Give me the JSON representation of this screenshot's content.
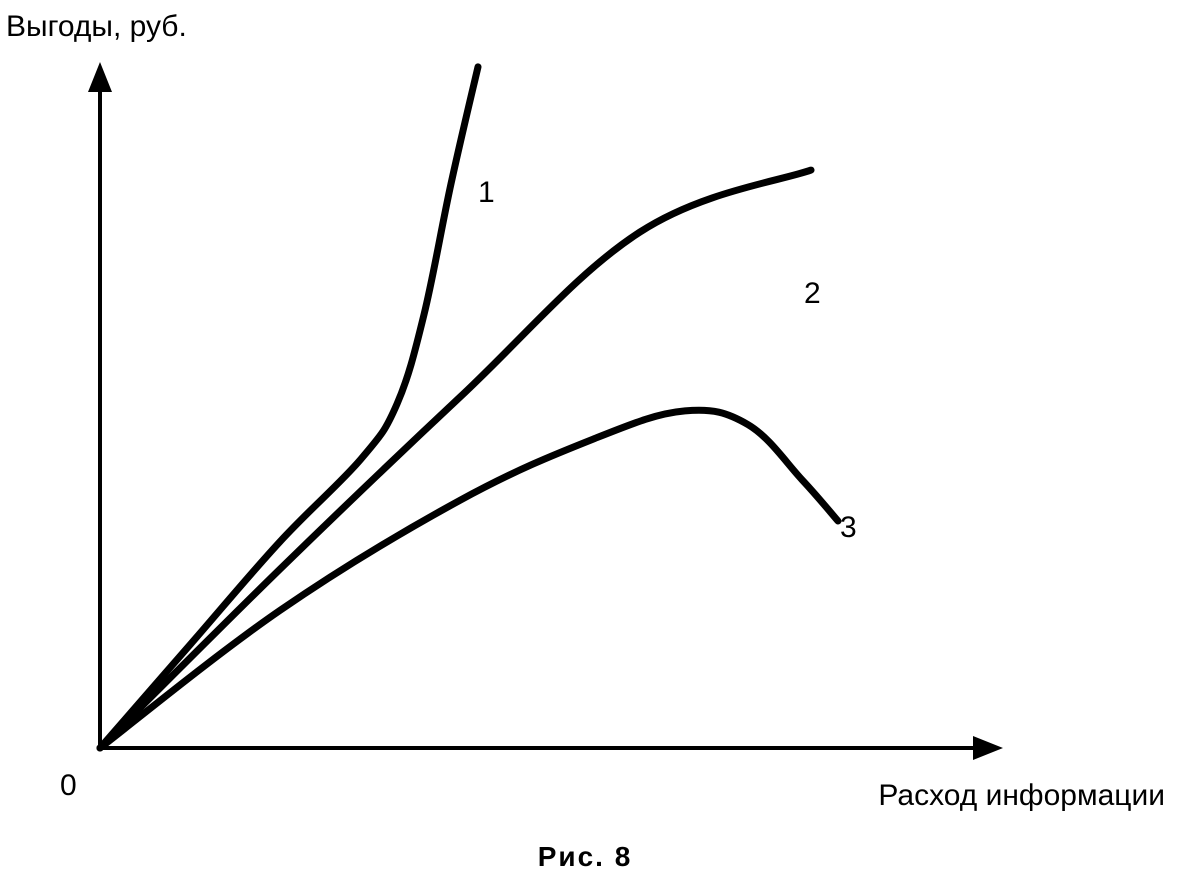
{
  "chart_data": {
    "type": "line",
    "ylabel": "Выгоды, руб.",
    "xlabel": "Расход информации",
    "origin_label": "0",
    "caption": "Рис. 8",
    "grid": false,
    "xlim": [
      0,
      10
    ],
    "ylim": [
      0,
      10
    ],
    "series": [
      {
        "name": "1",
        "x": [
          0,
          1.0,
          2.0,
          2.9,
          3.3,
          3.6,
          3.9,
          4.2
        ],
        "y": [
          0,
          1.5,
          3.0,
          4.2,
          5.0,
          6.3,
          8.2,
          9.9
        ]
      },
      {
        "name": "2",
        "x": [
          0,
          2.0,
          4.0,
          6.0,
          7.9
        ],
        "y": [
          0,
          2.6,
          5.1,
          7.5,
          8.4
        ]
      },
      {
        "name": "3",
        "x": [
          0,
          2.0,
          4.0,
          5.5,
          6.5,
          7.2,
          7.8,
          8.2
        ],
        "y": [
          0,
          2.0,
          3.6,
          4.5,
          4.9,
          4.7,
          3.9,
          3.3
        ]
      }
    ]
  }
}
